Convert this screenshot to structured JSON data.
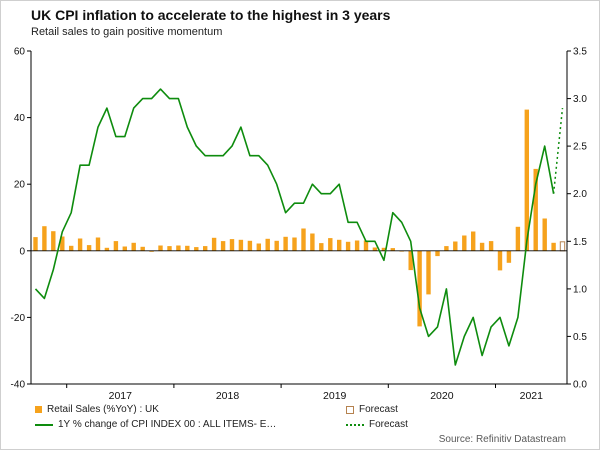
{
  "header": {
    "title": "UK CPI inflation to accelerate to the highest in 3 years",
    "subtitle": "Retail sales to gain positive momentum"
  },
  "source": "Source: Refinitiv Datastream",
  "legend": {
    "retail_label": "Retail Sales (%YoY) : UK",
    "retail_forecast_label": "Forecast",
    "cpi_label": "1Y % change of CPI INDEX 00 : ALL ITEMS- E…",
    "cpi_forecast_label": "Forecast"
  },
  "colors": {
    "bar": "#f6a21c",
    "bar_forecast_outline": "#b5824f",
    "line": "#0e8c0e",
    "axis": "#000000",
    "source_text": "#595959"
  },
  "chart_data": {
    "type": "bar+line",
    "title": "UK CPI inflation to accelerate to the highest in 3 years",
    "subtitle": "Retail sales to gain positive momentum",
    "x_monthly_start": "2016-09",
    "x_last_slot": "2021-08 (forecast)",
    "left_axis": {
      "range": [
        -40,
        60
      ],
      "ticks": [
        60,
        40,
        20,
        0,
        -20,
        -40
      ],
      "labels": [
        "60",
        "40",
        "20",
        "0",
        "-20",
        "-40"
      ]
    },
    "right_axis": {
      "range": [
        0,
        3.5
      ],
      "ticks": [
        3.5,
        3.0,
        2.5,
        2.0,
        1.5,
        1.0,
        0.5,
        0.0
      ],
      "labels": [
        "3.5",
        "3.0",
        "2.5",
        "2.0",
        "1.5",
        "1.0",
        "0.5",
        "0.0"
      ]
    },
    "years": [
      {
        "label": "2017",
        "start_index": 4
      },
      {
        "label": "2018",
        "start_index": 16
      },
      {
        "label": "2019",
        "start_index": 28
      },
      {
        "label": "2020",
        "start_index": 40
      },
      {
        "label": "2021",
        "start_index": 52
      }
    ],
    "retail": {
      "name": "Retail Sales (%YoY) : UK",
      "axis": "left",
      "values": [
        4.1,
        7.4,
        5.9,
        4.3,
        1.5,
        3.7,
        1.7,
        4.0,
        0.9,
        2.9,
        1.3,
        2.4,
        1.2,
        -0.3,
        1.6,
        1.4,
        1.6,
        1.5,
        1.1,
        1.4,
        3.9,
        2.9,
        3.5,
        3.3,
        3.0,
        2.2,
        3.6,
        3.0,
        4.2,
        4.0,
        6.7,
        5.2,
        2.3,
        3.8,
        3.3,
        2.7,
        3.1,
        3.1,
        1.0,
        0.9,
        0.8,
        0.0,
        -5.8,
        -22.7,
        -13.1,
        -1.6,
        1.4,
        2.8,
        4.6,
        5.8,
        2.4,
        2.9,
        -5.9,
        -3.6,
        7.2,
        42.4,
        24.6,
        9.7,
        2.4
      ]
    },
    "retail_forecast": {
      "name": "Forecast",
      "axis": "left",
      "value": 2.7
    },
    "cpi": {
      "name": "1Y % change of CPI INDEX 00 : ALL ITEMS- E…",
      "axis": "right",
      "values": [
        1.0,
        0.9,
        1.2,
        1.6,
        1.8,
        2.3,
        2.3,
        2.7,
        2.9,
        2.6,
        2.6,
        2.9,
        3.0,
        3.0,
        3.1,
        3.0,
        3.0,
        2.7,
        2.5,
        2.4,
        2.4,
        2.4,
        2.5,
        2.7,
        2.4,
        2.4,
        2.3,
        2.1,
        1.8,
        1.9,
        1.9,
        2.1,
        2.0,
        2.0,
        2.1,
        1.7,
        1.7,
        1.5,
        1.5,
        1.3,
        1.8,
        1.7,
        1.5,
        0.8,
        0.5,
        0.6,
        1.0,
        0.2,
        0.5,
        0.7,
        0.3,
        0.6,
        0.7,
        0.4,
        0.7,
        1.5,
        2.1,
        2.5,
        2.0
      ]
    },
    "cpi_forecast": {
      "name": "Forecast",
      "axis": "right",
      "value": 2.9
    }
  }
}
